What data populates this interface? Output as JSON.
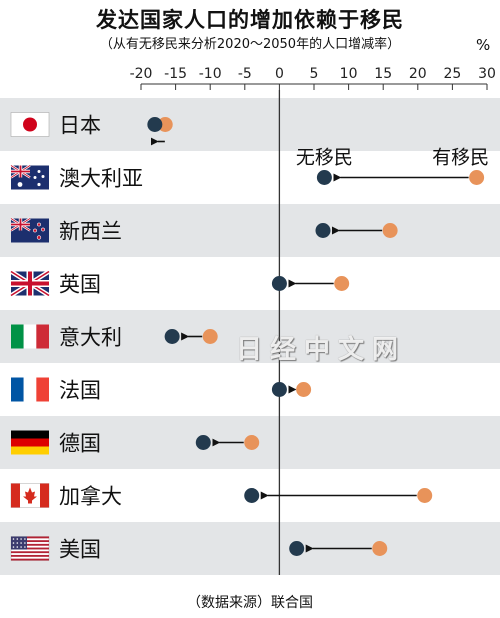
{
  "title": "发达国家人口的增加依赖于移民",
  "subtitle": "（从有无移民来分析2020～2050年的人口增减率）",
  "unit": "%",
  "source": "（数据来源）联合国",
  "watermark": "日经中文网",
  "colors": {
    "no_migration": "#233a4e",
    "with_migration": "#e8935a",
    "band": "#e3e5e7",
    "axis": "#333333"
  },
  "chart_data": {
    "type": "dot",
    "title": "发达国家人口的增加依赖于移民",
    "subtitle": "（从有无移民来分析2020～2050年的人口增减率）",
    "xlim": [
      -20,
      30
    ],
    "xticks": [
      -20,
      -15,
      -10,
      -5,
      0,
      5,
      10,
      15,
      20,
      25,
      30
    ],
    "categories": [
      "日本",
      "澳大利亚",
      "新西兰",
      "英国",
      "意大利",
      "法国",
      "德国",
      "加拿大",
      "美国"
    ],
    "flags": [
      "japan-flag",
      "australia-flag",
      "new-zealand-flag",
      "uk-flag",
      "italy-flag",
      "france-flag",
      "germany-flag",
      "canada-flag",
      "usa-flag"
    ],
    "series": [
      {
        "name": "无移民",
        "color": "#233a4e",
        "values": [
          -18,
          6.5,
          6.3,
          0,
          -15.5,
          0,
          -11,
          -4,
          2.5
        ]
      },
      {
        "name": "有移民",
        "color": "#e8935a",
        "values": [
          -16.5,
          28.5,
          16,
          9,
          -10,
          3.5,
          -4,
          21,
          14.5
        ]
      }
    ],
    "series_labels_row": "澳大利亚"
  }
}
